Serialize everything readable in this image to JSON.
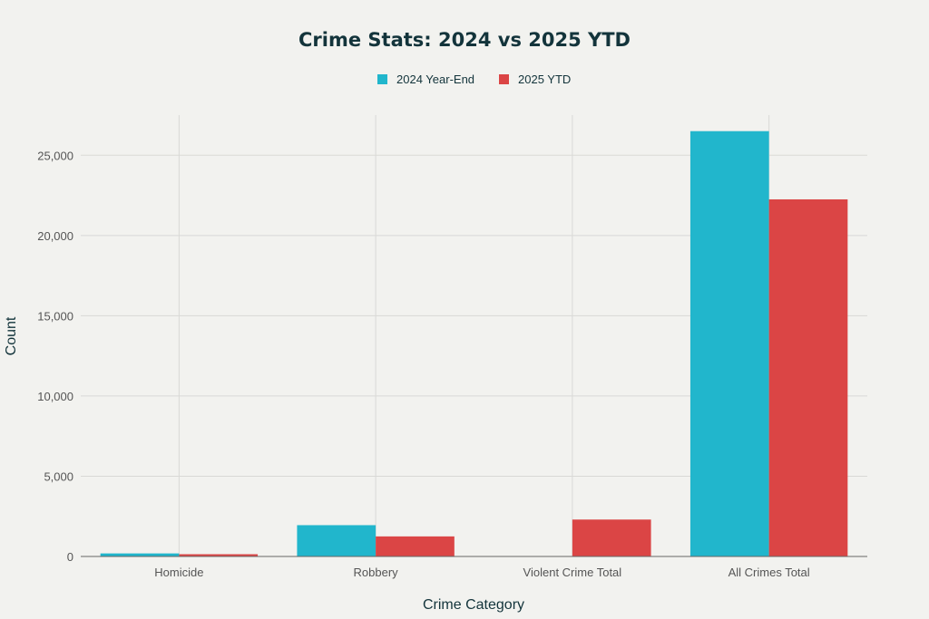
{
  "colors": {
    "series_2024": "#21b6cc",
    "series_2025": "#db4545"
  },
  "chart_data": {
    "type": "bar",
    "title": "Crime Stats: 2024 vs 2025 YTD",
    "xlabel": "Crime Category",
    "ylabel": "Count",
    "categories": [
      "Homicide",
      "Robbery",
      "Violent Crime Total",
      "All Crimes Total"
    ],
    "series": [
      {
        "name": "2024 Year-End",
        "values": [
          190,
          1950,
          0,
          26500
        ]
      },
      {
        "name": "2025 YTD",
        "values": [
          140,
          1250,
          2300,
          22250
        ]
      }
    ],
    "ylim": [
      0,
      27500
    ],
    "yticks": [
      0,
      5000,
      10000,
      15000,
      20000,
      25000
    ],
    "ytick_labels": [
      "0",
      "5,000",
      "10,000",
      "15,000",
      "20,000",
      "25,000"
    ],
    "grid": true,
    "legend_position": "top-center"
  }
}
